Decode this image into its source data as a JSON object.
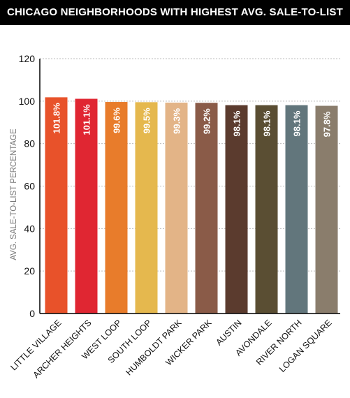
{
  "chart_data": {
    "type": "bar",
    "title": "CHICAGO NEIGHBORHOODS WITH HIGHEST AVG. SALE-TO-LIST",
    "xlabel": "",
    "ylabel": "AVG. SALE-TO-LIST PERCENTAGE",
    "ylim": [
      0,
      120
    ],
    "yticks": [
      0,
      20,
      40,
      60,
      80,
      100,
      120
    ],
    "grid": true,
    "categories": [
      "LITTLE VILLAGE",
      "ARCHER HEIGHTS",
      "WEST LOOP",
      "SOUTH LOOP",
      "HUMBOLDT PARK",
      "WICKER PARK",
      "AUSTIN",
      "AVONDALE",
      "RIVER NORTH",
      "LOGAN SQUARE"
    ],
    "values": [
      101.8,
      101.1,
      99.6,
      99.5,
      99.3,
      99.2,
      98.1,
      98.1,
      98.1,
      97.8
    ],
    "data_labels": [
      "101.8%",
      "101.1%",
      "99.6%",
      "99.5%",
      "99.3%",
      "99.2%",
      "98.1%",
      "98.1%",
      "98.1%",
      "97.8%"
    ],
    "colors": [
      "#e8522a",
      "#e02632",
      "#e87c2b",
      "#e5b84e",
      "#e3b487",
      "#8a5b48",
      "#5b3b2e",
      "#5a4e33",
      "#62767c",
      "#8a7d6c"
    ]
  }
}
